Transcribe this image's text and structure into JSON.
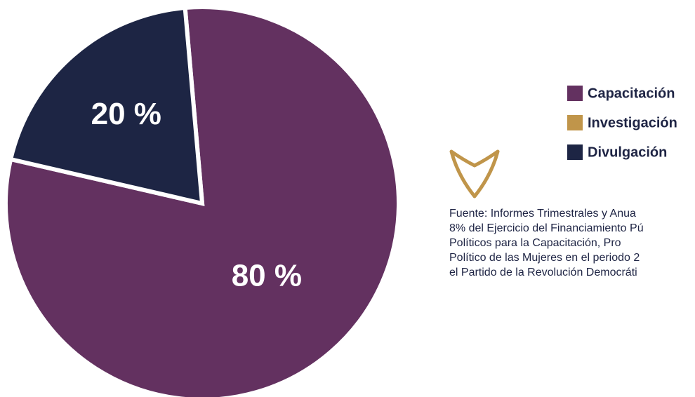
{
  "chart_data": {
    "type": "pie",
    "categories": [
      "Capacitación",
      "Investigación",
      "Divulgación"
    ],
    "values": [
      80,
      0,
      20
    ],
    "value_labels": [
      "80 %",
      null,
      "20 %"
    ],
    "colors": [
      "#633160",
      "#c0954a",
      "#1d2544"
    ],
    "legend": "right",
    "note_lines": [
      "Fuente: Informes Trimestrales y Anua",
      "8% del Ejercicio del Financiamiento Pú",
      "Políticos para la Capacitación, Pro",
      "Político de las Mujeres en el periodo 2",
      "el Partido de la Revolución Democráti"
    ]
  }
}
